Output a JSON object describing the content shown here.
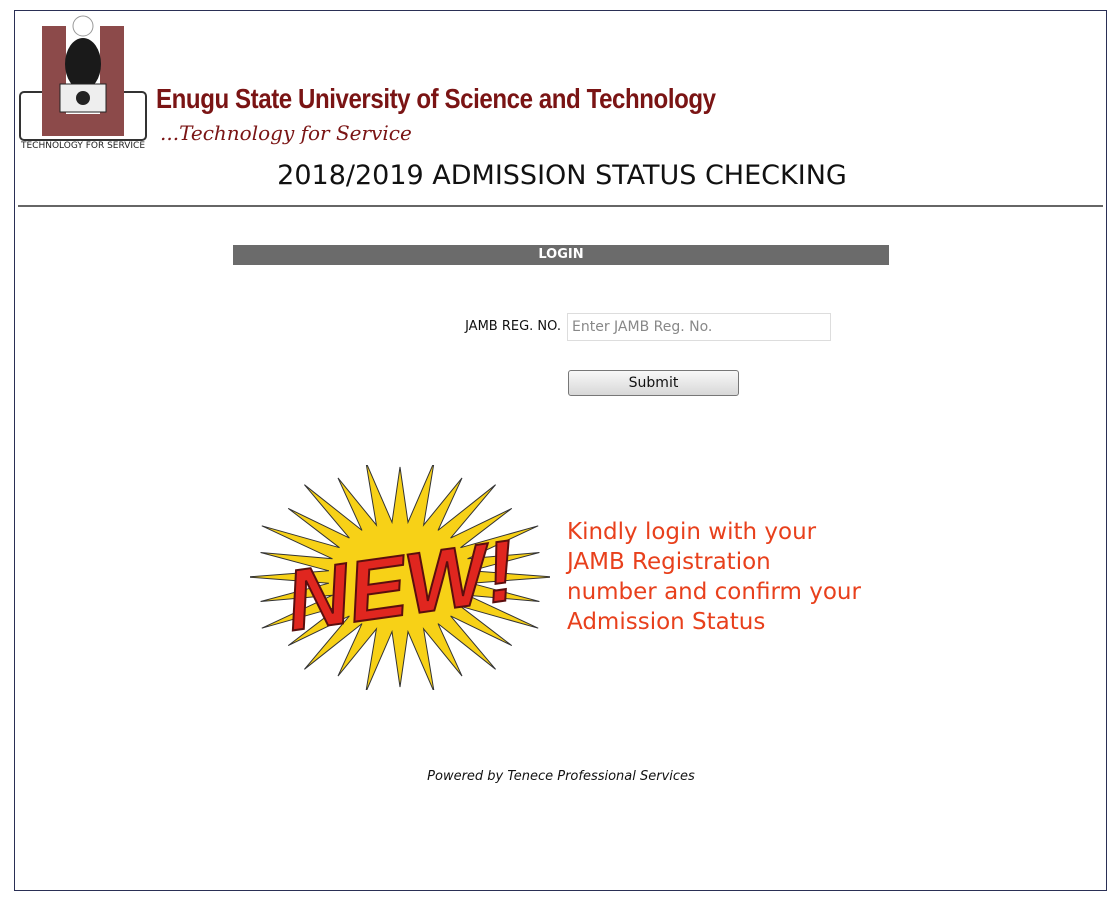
{
  "header": {
    "logo_text": "TECHNOLOGY FOR SERVICE",
    "university_name": "Enugu State University of Science and Technology",
    "tagline": "...Technology for Service",
    "page_heading": "2018/2019 ADMISSION STATUS CHECKING"
  },
  "login": {
    "title": "LOGIN",
    "jamb_label": "JAMB REG. NO.",
    "jamb_value": "",
    "jamb_placeholder": "Enter JAMB Reg. No.",
    "submit_label": "Submit"
  },
  "promo": {
    "badge_text": "NEW!",
    "message": "Kindly login with your JAMB Registration number and confirm your Admission Status"
  },
  "footer": {
    "text": "Powered by Tenece Professional Services"
  },
  "colors": {
    "brand": "#7a1414",
    "bar": "#6b6b6b",
    "message": "#e8401c",
    "badge_red": "#e0261f",
    "badge_yellow": "#f7d117"
  }
}
